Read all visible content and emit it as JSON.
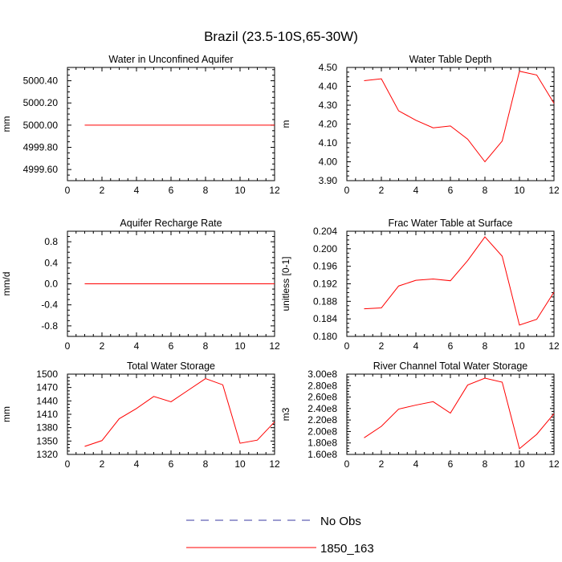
{
  "title": "Brazil (23.5-10S,65-30W)",
  "legend": {
    "items": [
      {
        "label": "No Obs",
        "color": "#3a3aa0",
        "dash": true
      },
      {
        "label": "1850_163",
        "color": "#ff0000",
        "dash": false
      }
    ]
  },
  "chart_data": [
    {
      "type": "line",
      "title": "Water in Unconfined Aquifer",
      "ylabel": "mm",
      "xlim": [
        0,
        12
      ],
      "ylim": [
        4999.5,
        5000.52
      ],
      "xticks": [
        0,
        2,
        4,
        6,
        8,
        10,
        12
      ],
      "xtick_labels": [
        "0",
        "2",
        "4",
        "6",
        "8",
        "10",
        "12"
      ],
      "yticks": [
        4999.6,
        4999.8,
        5000.0,
        5000.2,
        5000.4
      ],
      "ytick_labels": [
        "4999.60",
        "4999.80",
        "5000.00",
        "5000.20",
        "5000.40"
      ],
      "series": [
        {
          "x": [
            1,
            2,
            3,
            4,
            5,
            6,
            7,
            8,
            9,
            10,
            11,
            12
          ],
          "values": [
            5000,
            5000,
            5000,
            5000,
            5000,
            5000,
            5000,
            5000,
            5000,
            5000,
            5000,
            5000
          ]
        }
      ]
    },
    {
      "type": "line",
      "title": "Water Table Depth",
      "ylabel": "m",
      "xlim": [
        0,
        12
      ],
      "ylim": [
        3.9,
        4.5
      ],
      "xticks": [
        0,
        2,
        4,
        6,
        8,
        10,
        12
      ],
      "xtick_labels": [
        "0",
        "2",
        "4",
        "6",
        "8",
        "10",
        "12"
      ],
      "yticks": [
        3.9,
        4.0,
        4.1,
        4.2,
        4.3,
        4.4,
        4.5
      ],
      "ytick_labels": [
        "3.90",
        "4.00",
        "4.10",
        "4.20",
        "4.30",
        "4.40",
        "4.50"
      ],
      "series": [
        {
          "x": [
            1,
            2,
            3,
            4,
            5,
            6,
            7,
            8,
            9,
            10,
            11,
            12
          ],
          "values": [
            4.43,
            4.44,
            4.27,
            4.22,
            4.18,
            4.19,
            4.12,
            4.0,
            4.11,
            4.48,
            4.46,
            4.31
          ]
        }
      ]
    },
    {
      "type": "line",
      "title": "Aquifer Recharge Rate",
      "ylabel": "mm/d",
      "xlim": [
        0,
        12
      ],
      "ylim": [
        -1,
        1
      ],
      "xticks": [
        0,
        2,
        4,
        6,
        8,
        10,
        12
      ],
      "xtick_labels": [
        "0",
        "2",
        "4",
        "6",
        "8",
        "10",
        "12"
      ],
      "yticks": [
        -0.8,
        -0.4,
        0.0,
        0.4,
        0.8
      ],
      "ytick_labels": [
        "-0.8",
        "-0.4",
        "0.0",
        "0.4",
        "0.8"
      ],
      "series": [
        {
          "x": [
            1,
            2,
            3,
            4,
            5,
            6,
            7,
            8,
            9,
            10,
            11,
            12
          ],
          "values": [
            0,
            0,
            0,
            0,
            0,
            0,
            0,
            0,
            0,
            0,
            0,
            0
          ]
        }
      ]
    },
    {
      "type": "line",
      "title": "Frac Water Table at Surface",
      "ylabel": "unitless [0-1]",
      "xlim": [
        0,
        12
      ],
      "ylim": [
        0.18,
        0.204
      ],
      "xticks": [
        0,
        2,
        4,
        6,
        8,
        10,
        12
      ],
      "xtick_labels": [
        "0",
        "2",
        "4",
        "6",
        "8",
        "10",
        "12"
      ],
      "yticks": [
        0.18,
        0.184,
        0.188,
        0.192,
        0.196,
        0.2,
        0.204
      ],
      "ytick_labels": [
        "0.180",
        "0.184",
        "0.188",
        "0.192",
        "0.196",
        "0.200",
        "0.204"
      ],
      "series": [
        {
          "x": [
            1,
            2,
            3,
            4,
            5,
            6,
            7,
            8,
            9,
            10,
            11,
            12
          ],
          "values": [
            0.1863,
            0.1865,
            0.1915,
            0.1928,
            0.1931,
            0.1927,
            0.1973,
            0.2027,
            0.1983,
            0.1826,
            0.1839,
            0.1901
          ]
        }
      ]
    },
    {
      "type": "line",
      "title": "Total Water Storage",
      "ylabel": "mm",
      "xlim": [
        0,
        12
      ],
      "ylim": [
        1320,
        1500
      ],
      "xticks": [
        0,
        2,
        4,
        6,
        8,
        10,
        12
      ],
      "xtick_labels": [
        "0",
        "2",
        "4",
        "6",
        "8",
        "10",
        "12"
      ],
      "yticks": [
        1320,
        1350,
        1380,
        1410,
        1440,
        1470,
        1500
      ],
      "ytick_labels": [
        "1320",
        "1350",
        "1380",
        "1410",
        "1440",
        "1470",
        "1500"
      ],
      "series": [
        {
          "x": [
            1,
            2,
            3,
            4,
            5,
            6,
            7,
            8,
            9,
            10,
            11,
            12
          ],
          "values": [
            1338,
            1351,
            1400,
            1423,
            1450,
            1438,
            1464,
            1490,
            1476,
            1345,
            1352,
            1393
          ]
        }
      ]
    },
    {
      "type": "line",
      "title": "River Channel Total Water Storage",
      "ylabel": "m3",
      "xlim": [
        0,
        12
      ],
      "ylim": [
        160000000,
        300000000
      ],
      "xticks": [
        0,
        2,
        4,
        6,
        8,
        10,
        12
      ],
      "xtick_labels": [
        "0",
        "2",
        "4",
        "6",
        "8",
        "10",
        "12"
      ],
      "yticks": [
        160000000,
        180000000,
        200000000,
        220000000,
        240000000,
        260000000,
        280000000,
        300000000
      ],
      "ytick_labels": [
        "1.60e8",
        "1.80e8",
        "2.00e8",
        "2.20e8",
        "2.40e8",
        "2.60e8",
        "2.80e8",
        "3.00e8"
      ],
      "series": [
        {
          "x": [
            1,
            2,
            3,
            4,
            5,
            6,
            7,
            8,
            9,
            10,
            11,
            12
          ],
          "values": [
            189000000,
            209000000,
            239000000,
            246000000,
            252000000,
            232000000,
            281000000,
            293000000,
            286000000,
            170000000,
            195000000,
            231000000
          ]
        }
      ]
    }
  ]
}
